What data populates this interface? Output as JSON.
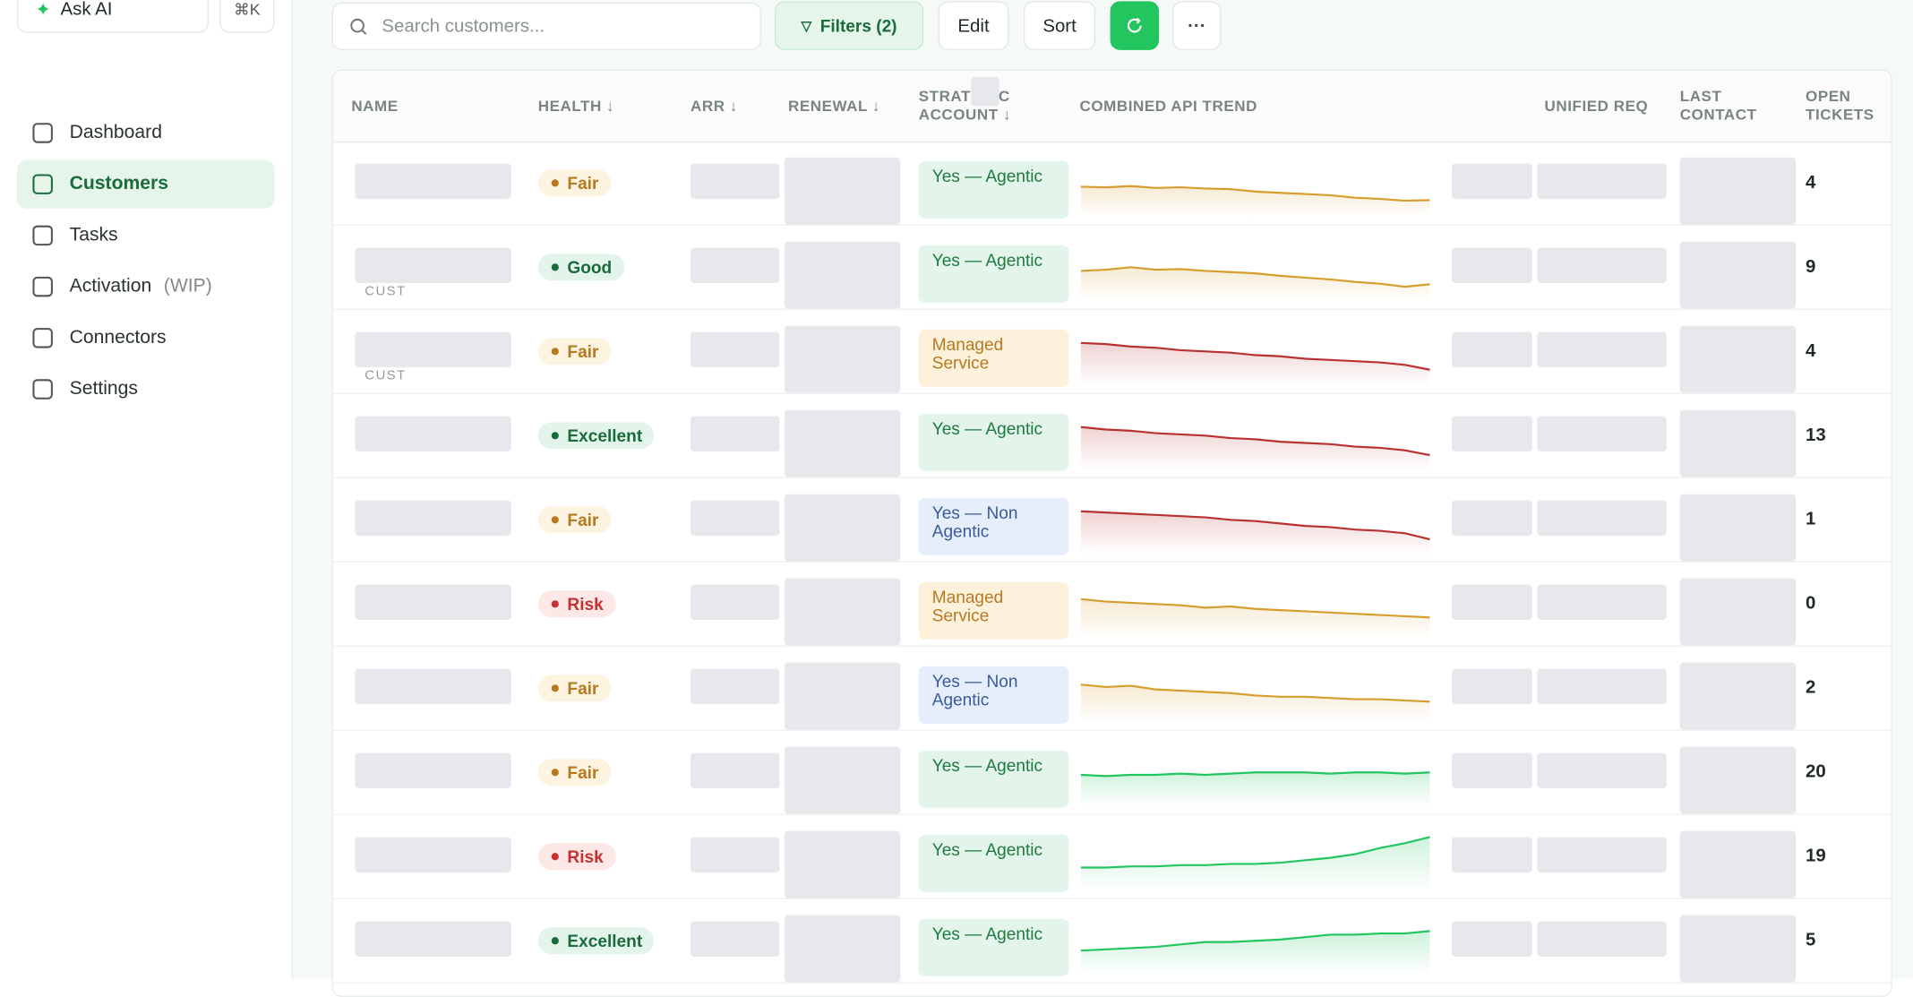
{
  "sidebar": {
    "ask_ai": "Ask AI",
    "shortcut": "⌘K",
    "nav": [
      {
        "label": "Dashboard"
      },
      {
        "label": "Customers",
        "active": true
      },
      {
        "label": "Tasks"
      },
      {
        "label": "Activation",
        "suffix": "(WIP)"
      },
      {
        "label": "Connectors"
      },
      {
        "label": "Settings"
      }
    ]
  },
  "toolbar": {
    "search_placeholder": "Search customers...",
    "filters": "Filters (2)",
    "edit": "Edit",
    "sort": "Sort"
  },
  "table": {
    "headers": [
      "NAME",
      "HEALTH ↓",
      "ARR ↓",
      "RENEWAL ↓",
      "STRATEGIC ACCOUNT ↓",
      "COMBINED API TREND",
      "UNIFIED REQ",
      "LAST CONTACT",
      "OPEN TICKETS"
    ],
    "rows": [
      {
        "health": "Fair",
        "strategic": "Yes — Agentic",
        "open_tickets": 4,
        "trend_color": "#d69e2e",
        "trend": [
          56,
          55,
          57,
          54,
          55,
          53,
          52,
          48,
          46,
          44,
          42,
          38,
          36,
          33,
          34
        ]
      },
      {
        "tag": "CUST",
        "health": "Good",
        "strategic": "Yes — Agentic",
        "open_tickets": 9,
        "trend_color": "#d69e2e",
        "trend": [
          56,
          58,
          62,
          58,
          59,
          56,
          54,
          52,
          48,
          45,
          42,
          38,
          35,
          30,
          34
        ]
      },
      {
        "tag": "CUST",
        "health": "Fair",
        "strategic": "Managed Service",
        "open_tickets": 4,
        "trend_color": "#b83232",
        "trend": [
          76,
          74,
          70,
          68,
          64,
          62,
          60,
          56,
          54,
          50,
          48,
          46,
          44,
          40,
          32
        ]
      },
      {
        "health": "Excellent",
        "strategic": "Yes — Agentic",
        "open_tickets": 13,
        "trend_color": "#b83232",
        "trend": [
          76,
          72,
          70,
          66,
          64,
          62,
          58,
          56,
          52,
          50,
          48,
          44,
          42,
          38,
          30
        ]
      },
      {
        "health": "Fair",
        "strategic": "Yes — Non Agentic",
        "open_tickets": 1,
        "trend_color": "#b83232",
        "trend": [
          76,
          74,
          72,
          70,
          68,
          66,
          62,
          60,
          56,
          52,
          50,
          46,
          44,
          40,
          30
        ]
      },
      {
        "health": "Risk",
        "strategic": "Managed Service",
        "open_tickets": 0,
        "trend_color": "#d69e2e",
        "trend": [
          70,
          66,
          64,
          62,
          60,
          56,
          58,
          54,
          52,
          50,
          48,
          46,
          44,
          42,
          40
        ]
      },
      {
        "health": "Fair",
        "strategic": "Yes — Non Agentic",
        "open_tickets": 2,
        "trend_color": "#d69e2e",
        "trend": [
          68,
          64,
          66,
          60,
          58,
          56,
          54,
          50,
          48,
          48,
          46,
          44,
          44,
          42,
          40
        ]
      },
      {
        "health": "Fair",
        "strategic": "Yes — Agentic",
        "open_tickets": 20,
        "trend_color": "#22c55e",
        "trend": [
          58,
          56,
          58,
          58,
          60,
          58,
          60,
          62,
          62,
          62,
          60,
          62,
          62,
          60,
          62
        ]
      },
      {
        "health": "Risk",
        "strategic": "Yes — Agentic",
        "open_tickets": 19,
        "trend_color": "#22c55e",
        "trend": [
          44,
          44,
          46,
          46,
          48,
          48,
          50,
          50,
          52,
          56,
          60,
          66,
          76,
          84,
          94
        ]
      },
      {
        "health": "Excellent",
        "strategic": "Yes — Agentic",
        "open_tickets": 5,
        "trend_color": "#22c55e",
        "trend": [
          46,
          48,
          50,
          52,
          56,
          60,
          60,
          62,
          64,
          68,
          72,
          72,
          74,
          74,
          78
        ]
      }
    ]
  }
}
